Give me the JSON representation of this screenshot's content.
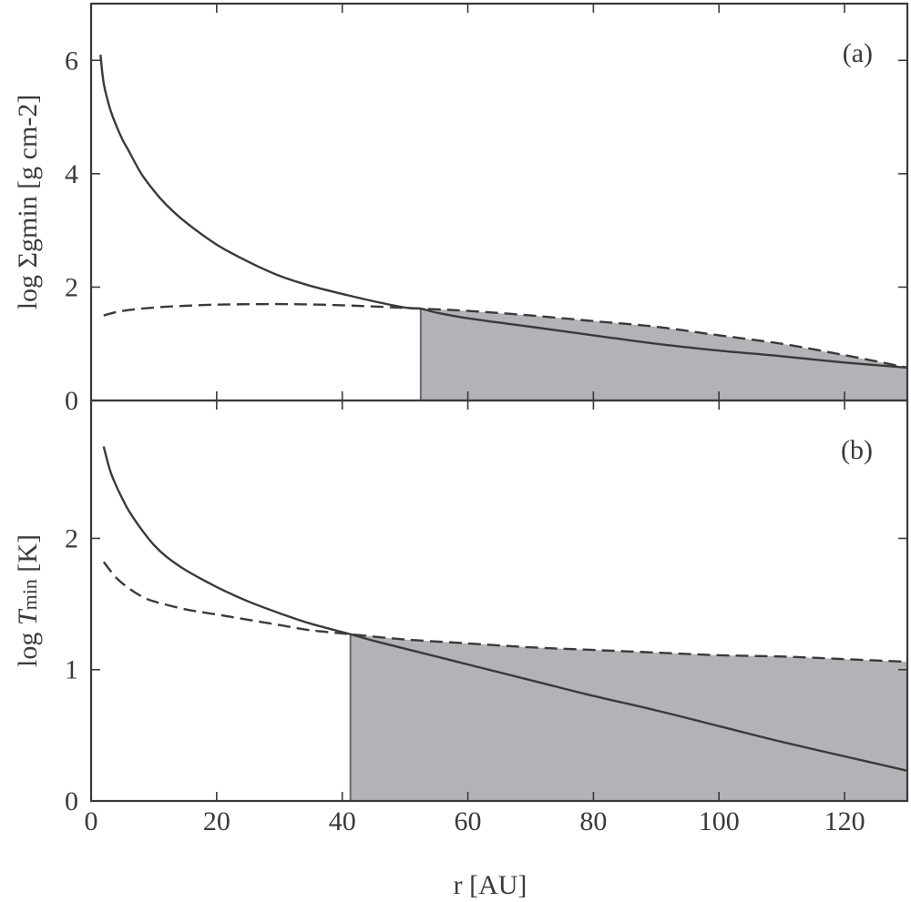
{
  "chart_data": [
    {
      "type": "line",
      "panel_label": "(a)",
      "ylabel": "log Σgmin [g cm-2]",
      "xlim": [
        0,
        130
      ],
      "ylim": [
        0,
        7
      ],
      "xticks": [
        0,
        20,
        40,
        60,
        80,
        100,
        120
      ],
      "yticks": [
        0,
        2,
        4,
        6
      ],
      "ytick_labels": [
        "0",
        "2",
        "4",
        "6"
      ],
      "shaded_from_x": 52.5,
      "series": [
        {
          "style": "solid",
          "x": [
            1.5,
            2,
            3,
            4,
            5,
            6,
            8,
            10,
            12,
            15,
            20,
            25,
            30,
            35,
            40,
            45,
            50,
            52.5,
            55,
            60,
            70,
            80,
            90,
            100,
            110,
            120,
            130
          ],
          "y": [
            6.1,
            5.6,
            5.15,
            4.85,
            4.6,
            4.4,
            4.0,
            3.7,
            3.45,
            3.15,
            2.75,
            2.45,
            2.2,
            2.02,
            1.88,
            1.75,
            1.64,
            1.62,
            1.55,
            1.45,
            1.3,
            1.15,
            1.0,
            0.88,
            0.78,
            0.67,
            0.58
          ]
        },
        {
          "style": "dashed",
          "x": [
            2,
            5,
            10,
            15,
            20,
            30,
            40,
            52.5,
            60,
            70,
            80,
            90,
            100,
            110,
            120,
            130
          ],
          "y": [
            1.5,
            1.58,
            1.64,
            1.67,
            1.69,
            1.7,
            1.68,
            1.62,
            1.58,
            1.5,
            1.4,
            1.3,
            1.15,
            1.0,
            0.8,
            0.58
          ]
        }
      ]
    },
    {
      "type": "line",
      "panel_label": "(b)",
      "ylabel": "log Tmin [K]",
      "ylabel_parts": [
        "log ",
        "T",
        "min",
        " [K]"
      ],
      "xlabel": "r [AU]",
      "xlim": [
        0,
        130
      ],
      "ylim": [
        0,
        3.05
      ],
      "xticks": [
        0,
        20,
        40,
        60,
        80,
        100,
        120
      ],
      "xtick_labels": [
        "0",
        "20",
        "40",
        "60",
        "80",
        "100",
        "120"
      ],
      "yticks": [
        0,
        1,
        2
      ],
      "ytick_labels": [
        "0",
        "1",
        "2"
      ],
      "shaded_from_x": 41.3,
      "series": [
        {
          "style": "solid",
          "x": [
            2,
            3,
            4,
            5,
            6,
            8,
            10,
            12,
            15,
            20,
            25,
            30,
            35,
            41.3,
            45,
            50,
            60,
            70,
            80,
            90,
            100,
            110,
            120,
            130
          ],
          "y": [
            2.7,
            2.52,
            2.4,
            2.3,
            2.21,
            2.07,
            1.95,
            1.86,
            1.76,
            1.63,
            1.52,
            1.43,
            1.35,
            1.27,
            1.22,
            1.16,
            1.04,
            0.92,
            0.8,
            0.69,
            0.57,
            0.45,
            0.34,
            0.23
          ]
        },
        {
          "style": "dashed",
          "x": [
            2,
            4,
            6,
            8,
            10,
            15,
            20,
            25,
            30,
            35,
            41.3,
            50,
            60,
            70,
            80,
            90,
            100,
            110,
            120,
            130
          ],
          "y": [
            1.82,
            1.7,
            1.62,
            1.56,
            1.52,
            1.46,
            1.42,
            1.38,
            1.34,
            1.3,
            1.27,
            1.23,
            1.2,
            1.17,
            1.15,
            1.13,
            1.11,
            1.1,
            1.08,
            1.06
          ]
        }
      ]
    }
  ]
}
